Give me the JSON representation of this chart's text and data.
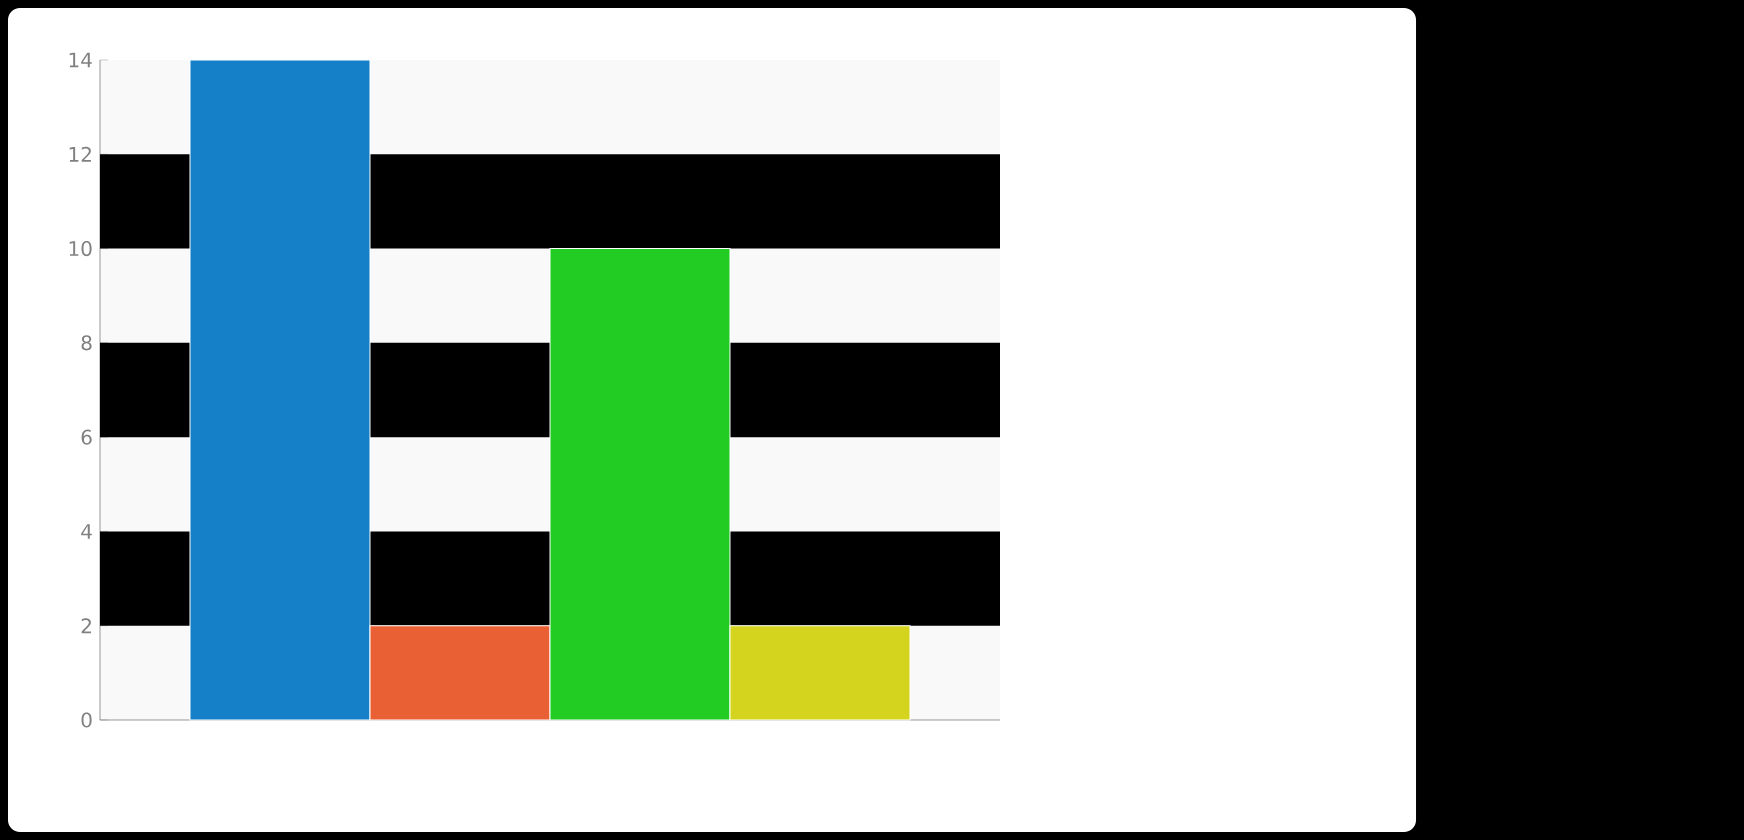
{
  "chart_data": {
    "type": "bar",
    "categories": [
      null
    ],
    "series": [
      {
        "color": "#1580c8",
        "values": [
          14
        ]
      },
      {
        "color": "#e86034",
        "values": [
          2
        ]
      },
      {
        "color": "#22cc22",
        "values": [
          10
        ]
      },
      {
        "color": "#d4d41e",
        "values": [
          2
        ]
      }
    ],
    "ylim": [
      0,
      14
    ],
    "yticks": [
      0,
      2,
      4,
      6,
      8,
      10,
      12,
      14
    ],
    "bands": [
      {
        "axis": "y",
        "from": 2,
        "to": 4,
        "color": "#000000"
      },
      {
        "axis": "y",
        "from": 6,
        "to": 8,
        "color": "#000000"
      },
      {
        "axis": "y",
        "from": 10,
        "to": 12,
        "color": "#000000"
      }
    ]
  }
}
